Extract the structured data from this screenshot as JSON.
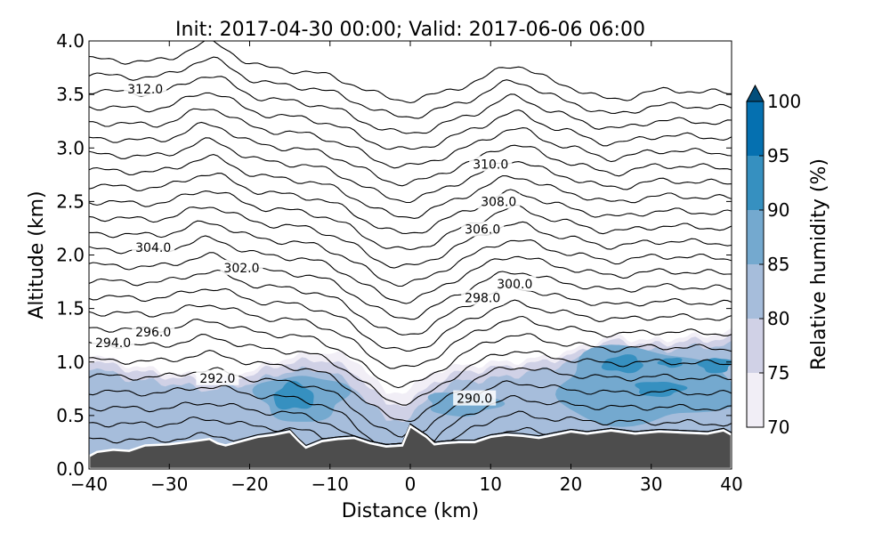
{
  "chart_data": {
    "type": "contour",
    "title": "Init: 2017-04-30 00:00; Valid: 2017-06-06 06:00",
    "xlabel": "Distance (km)",
    "ylabel": "Altitude (km)",
    "xlim": [
      -40,
      40
    ],
    "ylim": [
      0.0,
      4.0
    ],
    "x_ticks": [
      -40,
      -30,
      -20,
      -10,
      0,
      10,
      20,
      30,
      40
    ],
    "x_tick_labels": [
      "−40",
      "−30",
      "−20",
      "−10",
      "0",
      "10",
      "20",
      "30",
      "40"
    ],
    "y_ticks": [
      0.0,
      0.5,
      1.0,
      1.5,
      2.0,
      2.5,
      3.0,
      3.5,
      4.0
    ],
    "y_tick_labels": [
      "0.0",
      "0.5",
      "1.0",
      "1.5",
      "2.0",
      "2.5",
      "3.0",
      "3.5",
      "4.0"
    ],
    "colorbar": {
      "label": "Relative humidity (%)",
      "levels": [
        70,
        75,
        80,
        85,
        90,
        95,
        100
      ],
      "tick_labels": [
        "70",
        "75",
        "80",
        "85",
        "90",
        "95",
        "100"
      ],
      "colors": [
        "#f1eef6",
        "#d0d1e6",
        "#a6bddb",
        "#74a9cf",
        "#3690c0",
        "#0570b0",
        "#034e7b"
      ],
      "extend": "max"
    },
    "terrain": {
      "color": "#4d4d4d",
      "x": [
        -40,
        -39,
        -37,
        -35,
        -33,
        -30,
        -27,
        -25,
        -24,
        -23,
        -21,
        -19,
        -17,
        -15,
        -14,
        -13,
        -11,
        -9,
        -7,
        -5,
        -3,
        -1,
        0,
        1,
        2,
        3,
        4,
        6,
        8,
        10,
        12,
        14,
        16,
        18,
        20,
        22,
        25,
        28,
        31,
        34,
        37,
        39,
        40
      ],
      "y": [
        0.12,
        0.16,
        0.18,
        0.17,
        0.22,
        0.23,
        0.26,
        0.28,
        0.24,
        0.22,
        0.26,
        0.3,
        0.32,
        0.35,
        0.27,
        0.2,
        0.26,
        0.28,
        0.29,
        0.24,
        0.21,
        0.22,
        0.4,
        0.35,
        0.3,
        0.23,
        0.24,
        0.25,
        0.25,
        0.3,
        0.32,
        0.31,
        0.29,
        0.32,
        0.35,
        0.33,
        0.36,
        0.33,
        0.35,
        0.34,
        0.33,
        0.36,
        0.32
      ]
    },
    "rh_fill": [
      {
        "level": 70,
        "x": [
          -40,
          -35,
          -30,
          -25,
          -20,
          -15,
          -10,
          -6,
          -3,
          0,
          3,
          6,
          10,
          15,
          20,
          25,
          30,
          35,
          40
        ],
        "y": [
          1.08,
          0.97,
          0.9,
          0.86,
          0.92,
          1.05,
          1.1,
          0.98,
          0.7,
          0.75,
          0.92,
          0.96,
          0.99,
          1.02,
          1.1,
          1.24,
          1.2,
          1.24,
          1.28
        ]
      },
      {
        "level": 75,
        "x": [
          -40,
          -35,
          -30,
          -25,
          -20,
          -15,
          -10,
          -6,
          -3,
          0,
          3,
          6,
          10,
          15,
          20,
          25,
          30,
          35,
          40
        ],
        "y": [
          1.02,
          0.93,
          0.86,
          0.82,
          0.88,
          1.0,
          1.02,
          0.85,
          0.6,
          0.62,
          0.82,
          0.9,
          0.94,
          0.98,
          1.06,
          1.2,
          1.16,
          1.2,
          1.22
        ]
      },
      {
        "level": 80,
        "x": [
          -40,
          -35,
          -30,
          -25,
          -20,
          -15,
          -10,
          -6,
          -3,
          0,
          3,
          6,
          10,
          15,
          20,
          25,
          30,
          35,
          40
        ],
        "y": [
          0.96,
          0.84,
          0.8,
          0.74,
          0.8,
          0.92,
          0.92,
          0.7,
          0.45,
          0.48,
          0.72,
          0.82,
          0.84,
          0.9,
          1.0,
          1.14,
          1.1,
          1.14,
          1.16
        ]
      }
    ],
    "rh_cores": [
      {
        "level": 85,
        "x_range": [
          -19,
          -8
        ],
        "y_range": [
          0.45,
          0.88
        ],
        "peak_x": -14
      },
      {
        "level": 85,
        "x_range": [
          2,
          11
        ],
        "y_range": [
          0.5,
          0.72
        ],
        "peak_x": 6
      },
      {
        "level": 85,
        "x_range": [
          18,
          40
        ],
        "y_range": [
          0.42,
          1.12
        ],
        "peak_x": 30
      },
      {
        "level": 90,
        "x_range": [
          -17,
          -12
        ],
        "y_range": [
          0.55,
          0.8
        ],
        "peak_x": -14
      },
      {
        "level": 90,
        "x_range": [
          24,
          29
        ],
        "y_range": [
          0.9,
          1.06
        ],
        "peak_x": 26
      },
      {
        "level": 90,
        "x_range": [
          31,
          34
        ],
        "y_range": [
          0.95,
          1.04
        ],
        "peak_x": 32
      },
      {
        "level": 90,
        "x_range": [
          36,
          40
        ],
        "y_range": [
          0.9,
          1.04
        ],
        "peak_x": 38
      },
      {
        "level": 90,
        "x_range": [
          28,
          34
        ],
        "y_range": [
          0.68,
          0.82
        ],
        "peak_x": 30
      }
    ],
    "theta_contours": {
      "start": 288.0,
      "step": 1.0,
      "count": 25,
      "labels": [
        {
          "value": "290.0",
          "x": 8,
          "y": 0.66
        },
        {
          "value": "292.0",
          "x": -24,
          "y": 0.85
        },
        {
          "value": "294.0",
          "x": -37,
          "y": 1.18
        },
        {
          "value": "296.0",
          "x": -32,
          "y": 1.28
        },
        {
          "value": "298.0",
          "x": 9,
          "y": 1.6
        },
        {
          "value": "300.0",
          "x": 13,
          "y": 1.73
        },
        {
          "value": "302.0",
          "x": -21,
          "y": 1.88
        },
        {
          "value": "304.0",
          "x": -32,
          "y": 2.07
        },
        {
          "value": "306.0",
          "x": 9,
          "y": 2.24
        },
        {
          "value": "308.0",
          "x": 11,
          "y": 2.5
        },
        {
          "value": "310.0",
          "x": 10,
          "y": 2.85
        },
        {
          "value": "312.0",
          "x": -33,
          "y": 3.55
        }
      ]
    }
  }
}
